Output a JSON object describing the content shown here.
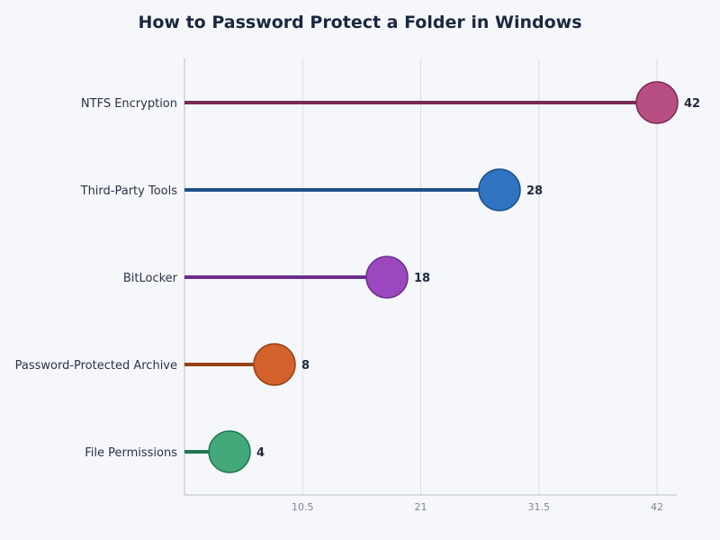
{
  "chart_data": {
    "type": "lollipop",
    "title": "How to Password Protect a Folder in Windows",
    "xlabel": "",
    "ylabel": "",
    "xlim": [
      0,
      42
    ],
    "x_ticks": [
      "10.5",
      "21",
      "31.5",
      "42"
    ],
    "x_tick_values": [
      10.5,
      21,
      31.5,
      42
    ],
    "grid": "vertical",
    "categories": [
      "NTFS Encryption",
      "Third-Party Tools",
      "BitLocker",
      "Password-Protected Archive",
      "File Permissions"
    ],
    "values": [
      42,
      28,
      18,
      8,
      4
    ],
    "colors": [
      {
        "fill": "#b84f82",
        "stroke": "#7a2a57"
      },
      {
        "fill": "#2f74c0",
        "stroke": "#1e4f8a"
      },
      {
        "fill": "#9b48be",
        "stroke": "#6b2c8f"
      },
      {
        "fill": "#d2612c",
        "stroke": "#974214"
      },
      {
        "fill": "#43a97b",
        "stroke": "#237652"
      }
    ]
  }
}
